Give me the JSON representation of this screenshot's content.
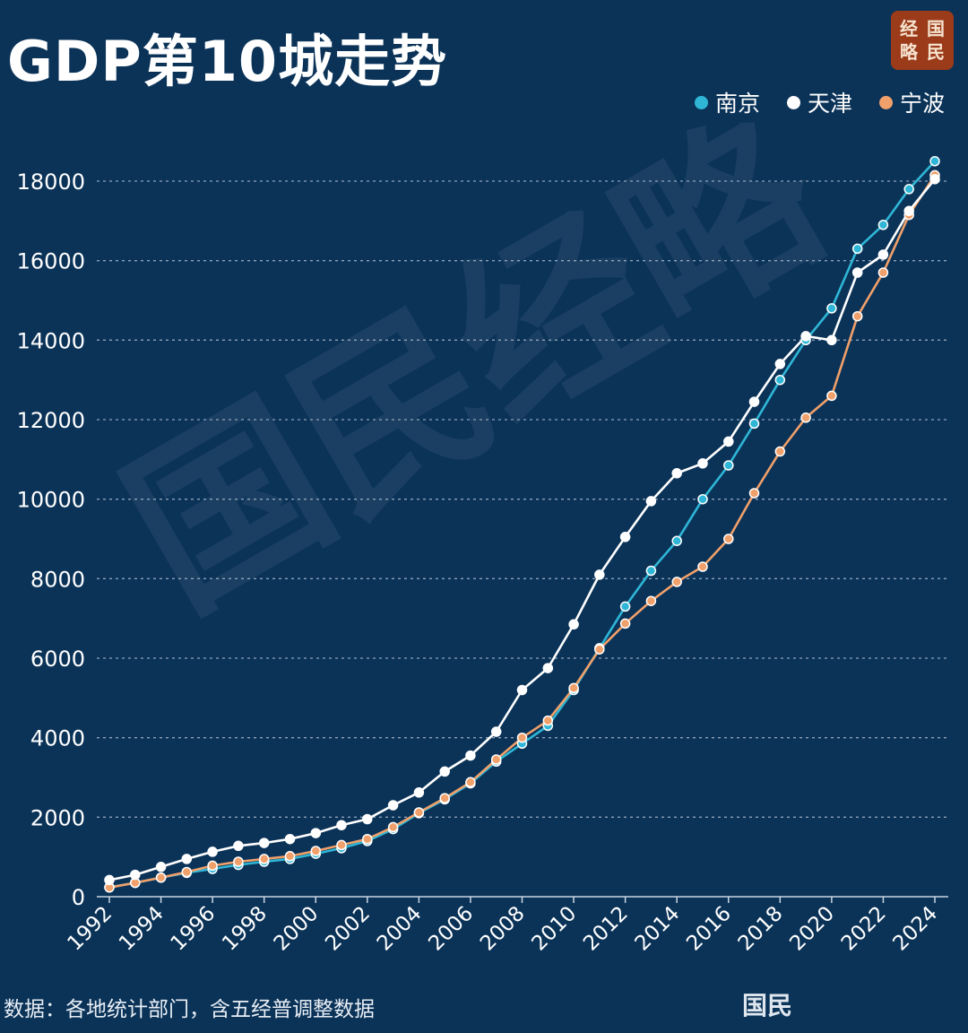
{
  "title": "GDP第10城走势",
  "logo": [
    "经",
    "国",
    "略",
    "民"
  ],
  "source": "数据：各地统计部门，含五经普调整数据",
  "footer_mark": "国民",
  "watermark": "国民经略",
  "chart_data": {
    "type": "line",
    "title": "GDP第10城走势",
    "xlabel": "",
    "ylabel": "",
    "x": [
      1992,
      1993,
      1994,
      1995,
      1996,
      1997,
      1998,
      1999,
      2000,
      2001,
      2002,
      2003,
      2004,
      2005,
      2006,
      2007,
      2008,
      2009,
      2010,
      2011,
      2012,
      2013,
      2014,
      2015,
      2016,
      2017,
      2018,
      2019,
      2020,
      2021,
      2022,
      2023,
      2024
    ],
    "xticks": [
      1992,
      1994,
      1996,
      1998,
      2000,
      2002,
      2004,
      2006,
      2008,
      2010,
      2012,
      2014,
      2016,
      2018,
      2020,
      2022,
      2024
    ],
    "yticks": [
      0,
      2000,
      4000,
      6000,
      8000,
      10000,
      12000,
      14000,
      16000,
      18000
    ],
    "ylim": [
      0,
      18000
    ],
    "grid": true,
    "legend_position": "top-right",
    "series": [
      {
        "name": "南京",
        "color": "#2fb6d6",
        "values": [
          240,
          350,
          480,
          600,
          700,
          800,
          880,
          950,
          1080,
          1220,
          1400,
          1700,
          2100,
          2450,
          2850,
          3400,
          3850,
          4300,
          5200,
          6250,
          7300,
          8200,
          8950,
          10000,
          10850,
          11900,
          13000,
          14000,
          14800,
          16300,
          16900,
          17800,
          18500
        ]
      },
      {
        "name": "天津",
        "color": "#ffffff",
        "values": [
          420,
          550,
          750,
          950,
          1130,
          1280,
          1350,
          1450,
          1600,
          1800,
          1950,
          2300,
          2620,
          3150,
          3550,
          4150,
          5200,
          5750,
          6850,
          8100,
          9050,
          9950,
          10650,
          10900,
          11450,
          12450,
          13400,
          14100,
          14000,
          15700,
          16150,
          17250,
          18050
        ]
      },
      {
        "name": "宁波",
        "color": "#f0a06a",
        "values": [
          230,
          350,
          480,
          620,
          780,
          880,
          950,
          1020,
          1150,
          1300,
          1450,
          1750,
          2120,
          2480,
          2880,
          3450,
          4000,
          4430,
          5250,
          6220,
          6870,
          7440,
          7920,
          8300,
          9000,
          10150,
          11200,
          12050,
          12600,
          14600,
          15700,
          17150,
          18150
        ]
      }
    ]
  }
}
